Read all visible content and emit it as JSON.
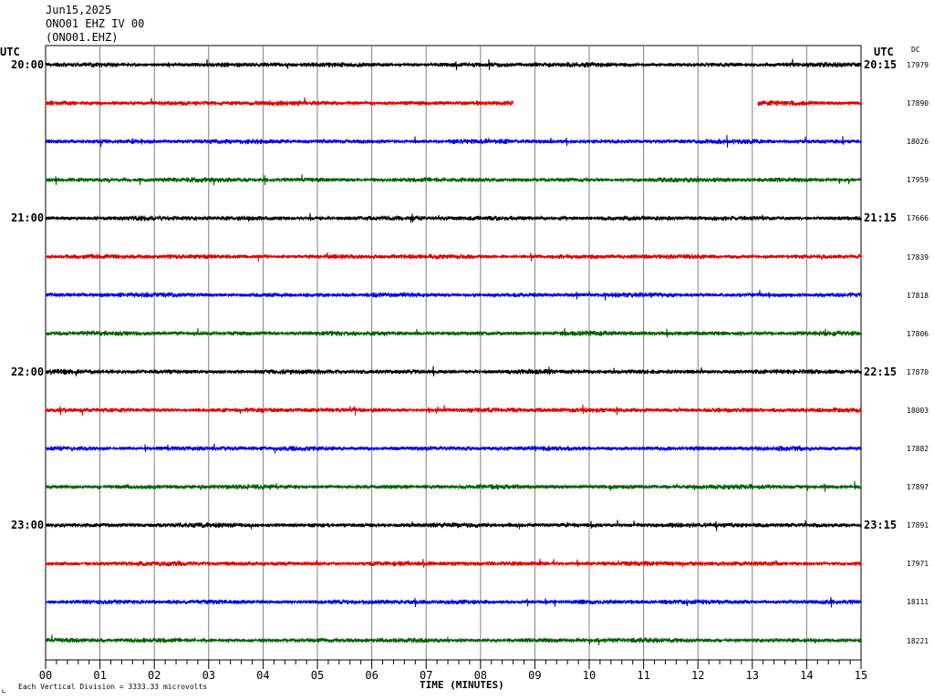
{
  "header": {
    "date": "Jun15,2025",
    "station": "ONO01 EHZ IV 00",
    "channel": "(ONO01.EHZ)"
  },
  "left_utc_label": "UTC",
  "right_utc_label": "UTC",
  "dc_label": "DC",
  "colors": [
    "#000000",
    "#e00000",
    "#0000e0",
    "#006000"
  ],
  "chart_data": {
    "type": "line",
    "title": "ONO01 EHZ IV 00",
    "xlabel": "TIME (MINUTES)",
    "xlim": [
      0,
      15
    ],
    "x_ticks": [
      "00",
      "01",
      "02",
      "03",
      "04",
      "05",
      "06",
      "07",
      "08",
      "09",
      "10",
      "11",
      "12",
      "13",
      "14",
      "15"
    ],
    "rows": [
      {
        "left": "20:00",
        "right": "20:15",
        "dc": "17979"
      },
      {
        "left": "",
        "right": "",
        "dc": "17890",
        "gap": [
          8.6,
          13.1
        ]
      },
      {
        "left": "",
        "right": "",
        "dc": "18026"
      },
      {
        "left": "",
        "right": "",
        "dc": "17959"
      },
      {
        "left": "21:00",
        "right": "21:15",
        "dc": "17666"
      },
      {
        "left": "",
        "right": "",
        "dc": "17839"
      },
      {
        "left": "",
        "right": "",
        "dc": "17818"
      },
      {
        "left": "",
        "right": "",
        "dc": "17806"
      },
      {
        "left": "22:00",
        "right": "22:15",
        "dc": "17870"
      },
      {
        "left": "",
        "right": "",
        "dc": "18003"
      },
      {
        "left": "",
        "right": "",
        "dc": "17882"
      },
      {
        "left": "",
        "right": "",
        "dc": "17897"
      },
      {
        "left": "23:00",
        "right": "23:15",
        "dc": "17891"
      },
      {
        "left": "",
        "right": "",
        "dc": "17971"
      },
      {
        "left": "",
        "right": "",
        "dc": "18111"
      },
      {
        "left": "",
        "right": "",
        "dc": "18221"
      }
    ],
    "footnote": "Each Vertical Division = 3333.33 microvolts"
  }
}
